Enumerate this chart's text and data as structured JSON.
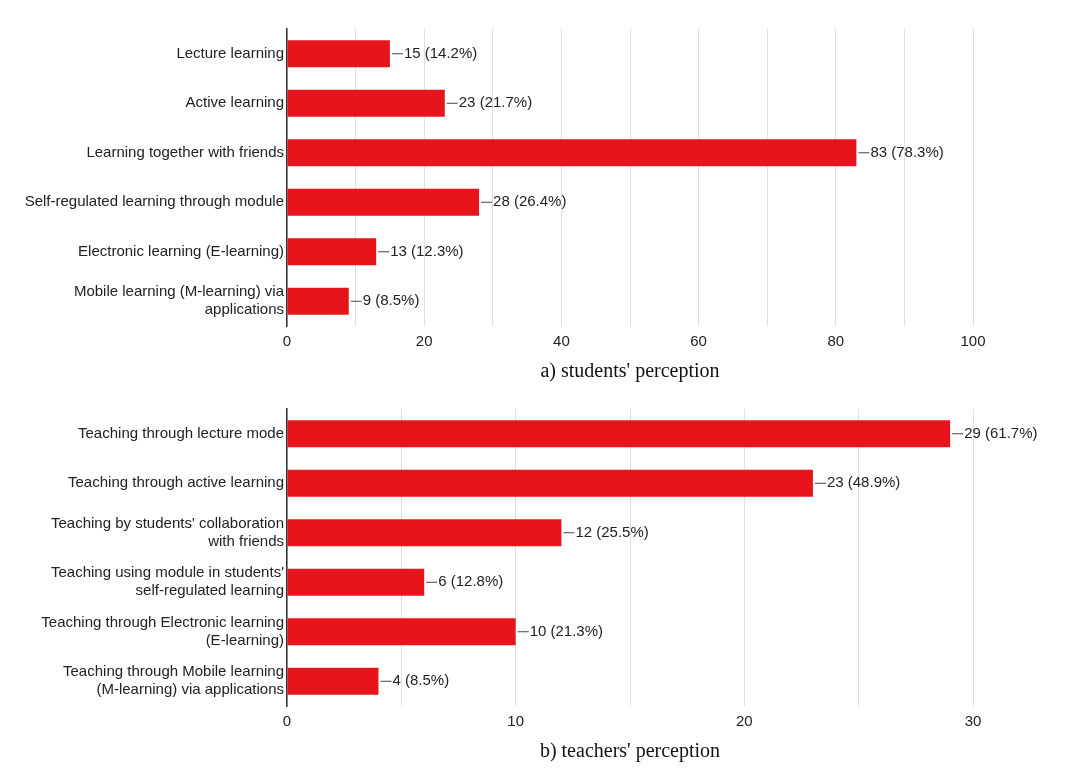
{
  "chart_data": [
    {
      "type": "bar",
      "orientation": "horizontal",
      "xlabel": "a) students' perception",
      "categories": [
        "Lecture learning",
        "Active learning",
        "Learning together with friends",
        "Self-regulated learning through module",
        "Electronic learning (E-learning)",
        "Mobile learning (M-learning) via applications"
      ],
      "values": [
        15,
        23,
        83,
        28,
        13,
        9
      ],
      "color": "#e8141b",
      "value_labels": [
        "15 (14.2%)",
        "23 (21.7%)",
        "83 (78.3%)",
        "28 (26.4%)",
        "13 (12.3%)",
        "9 (8.5%)"
      ],
      "xlim": [
        0,
        100
      ],
      "xticks": [
        0,
        {
          "value": 10,
          "label": null
        },
        20,
        {
          "value": 30,
          "label": null
        },
        40,
        {
          "value": 50,
          "label": null
        },
        60,
        {
          "value": 70,
          "label": null
        },
        80,
        {
          "value": 90,
          "label": null
        },
        100
      ],
      "grid": "x",
      "legend": false
    },
    {
      "type": "bar",
      "orientation": "horizontal",
      "xlabel": "b) teachers' perception",
      "categories": [
        "Teaching through lecture mode",
        "Teaching through active learning",
        "Teaching by students' collaboration with friends",
        "Teaching using module in students' self-regulated learning",
        "Teaching through Electronic learning (E-learning)",
        "Teaching through Mobile learning (M-learning) via applications"
      ],
      "values": [
        29,
        23,
        12,
        6,
        10,
        4
      ],
      "color": "#e8141b",
      "value_labels": [
        "29 (61.7%)",
        "23 (48.9%)",
        "12 (25.5%)",
        "6 (12.8%)",
        "10 (21.3%)",
        "4 (8.5%)"
      ],
      "xlim": [
        0,
        30
      ],
      "xticks": [
        0,
        {
          "value": 5,
          "label": null
        },
        10,
        {
          "value": 15,
          "label": null
        },
        20,
        {
          "value": 25,
          "label": null
        },
        30
      ],
      "grid": "x",
      "legend": false
    }
  ]
}
